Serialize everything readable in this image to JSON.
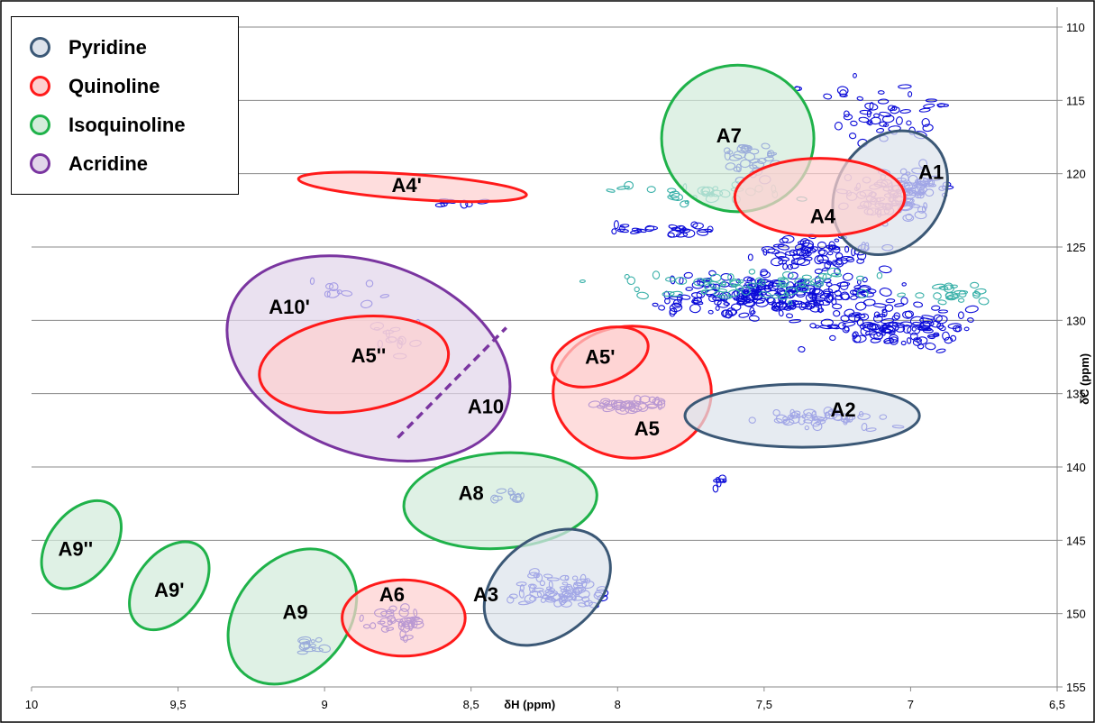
{
  "chart_data": {
    "type": "scatter",
    "title": "",
    "xlabel": "δH (ppm)",
    "ylabel": "δC (ppm)",
    "x_reversed": true,
    "y_reversed": true,
    "xlim": [
      10,
      6.5
    ],
    "ylim": [
      110,
      155
    ],
    "x_tick_labels": [
      "10",
      "9,5",
      "9",
      "8,5",
      "8",
      "7,5",
      "7",
      "6,5"
    ],
    "x_tick_values": [
      10,
      9.5,
      9,
      8.5,
      8,
      7.5,
      7,
      6.5
    ],
    "y_tick_labels": [
      "110",
      "115",
      "120",
      "125",
      "130",
      "135",
      "140",
      "145",
      "150",
      "155"
    ],
    "y_tick_values": [
      110,
      115,
      120,
      125,
      130,
      135,
      140,
      145,
      150,
      155
    ],
    "grid": "horizontal",
    "legend_placement": "top-left",
    "legend": [
      {
        "name": "Pyridine",
        "color": "#3b5876",
        "fill": "#dde3ec"
      },
      {
        "name": "Quinoline",
        "color": "#ff1a1a",
        "fill": "#fdd0d0"
      },
      {
        "name": "Isoquinoline",
        "color": "#1fb24a",
        "fill": "#d3ecdb"
      },
      {
        "name": "Acridine",
        "color": "#7a35a0",
        "fill": "#e2d6ea"
      }
    ],
    "regions": [
      {
        "label": "A10'",
        "family": "Acridine",
        "center_h": 8.85,
        "center_c": 132.6,
        "width_h": 1.0,
        "height_c": 13.0,
        "rotation_deg": 20,
        "label_h": 9.12,
        "label_c": 129.2
      },
      {
        "label": "A10",
        "family": "Acridine",
        "center_h": 8.85,
        "center_c": 132.6,
        "width_h": 1.0,
        "height_c": 13.0,
        "rotation_deg": 20,
        "label_h": 8.45,
        "label_c": 136.0
      },
      {
        "label": "A5''",
        "family": "Quinoline",
        "center_h": 8.9,
        "center_c": 133.0,
        "width_h": 0.65,
        "height_c": 6.4,
        "rotation_deg": -8,
        "label_h": 8.85,
        "label_c": 132.5
      },
      {
        "label": "A5",
        "family": "Quinoline",
        "center_h": 7.95,
        "center_c": 134.9,
        "width_h": 0.54,
        "height_c": 9.0,
        "rotation_deg": 0,
        "label_h": 7.9,
        "label_c": 137.5
      },
      {
        "label": "A5'",
        "family": "Quinoline",
        "center_h": 8.06,
        "center_c": 132.5,
        "width_h": 0.34,
        "height_c": 3.7,
        "rotation_deg": -18,
        "label_h": 8.06,
        "label_c": 132.6
      },
      {
        "label": "A4'",
        "family": "Quinoline",
        "center_h": 8.7,
        "center_c": 120.9,
        "width_h": 0.78,
        "height_c": 1.7,
        "rotation_deg": 4,
        "label_h": 8.72,
        "label_c": 120.9
      },
      {
        "label": "A4",
        "family": "Quinoline",
        "center_h": 7.31,
        "center_c": 121.6,
        "width_h": 0.58,
        "height_c": 5.3,
        "rotation_deg": 0,
        "label_h": 7.3,
        "label_c": 123.0
      },
      {
        "label": "A7",
        "family": "Isoquinoline",
        "center_h": 7.59,
        "center_c": 117.6,
        "width_h": 0.52,
        "height_c": 10.0,
        "rotation_deg": 0,
        "label_h": 7.62,
        "label_c": 117.5
      },
      {
        "label": "A1",
        "family": "Pyridine",
        "center_h": 7.07,
        "center_c": 121.3,
        "width_h": 0.36,
        "height_c": 9.0,
        "rotation_deg": 35,
        "label_h": 6.93,
        "label_c": 120.0
      },
      {
        "label": "A2",
        "family": "Pyridine",
        "center_h": 7.37,
        "center_c": 136.5,
        "width_h": 0.8,
        "height_c": 4.3,
        "rotation_deg": 0,
        "label_h": 7.23,
        "label_c": 136.2
      },
      {
        "label": "A8",
        "family": "Isoquinoline",
        "center_h": 8.4,
        "center_c": 142.3,
        "width_h": 0.66,
        "height_c": 6.5,
        "rotation_deg": -4,
        "label_h": 8.5,
        "label_c": 141.9
      },
      {
        "label": "A3",
        "family": "Pyridine",
        "center_h": 8.24,
        "center_c": 148.2,
        "width_h": 0.48,
        "height_c": 6.7,
        "rotation_deg": -38,
        "label_h": 8.45,
        "label_c": 148.8
      },
      {
        "label": "A6",
        "family": "Quinoline",
        "center_h": 8.73,
        "center_c": 150.3,
        "width_h": 0.42,
        "height_c": 5.2,
        "rotation_deg": 0,
        "label_h": 8.77,
        "label_c": 148.8
      },
      {
        "label": "A9",
        "family": "Isoquinoline",
        "center_h": 9.11,
        "center_c": 150.2,
        "width_h": 0.38,
        "height_c": 10.2,
        "rotation_deg": 40,
        "label_h": 9.1,
        "label_c": 150.0
      },
      {
        "label": "A9'",
        "family": "Isoquinoline",
        "center_h": 9.53,
        "center_c": 148.1,
        "width_h": 0.22,
        "height_c": 6.8,
        "rotation_deg": 38,
        "label_h": 9.53,
        "label_c": 148.5
      },
      {
        "label": "A9''",
        "family": "Isoquinoline",
        "center_h": 9.83,
        "center_c": 145.3,
        "width_h": 0.22,
        "height_c": 6.8,
        "rotation_deg": 38,
        "label_h": 9.85,
        "label_c": 145.7
      }
    ],
    "acridine_divider": {
      "from_h": 8.75,
      "from_c": 138.0,
      "to_h": 8.38,
      "to_c": 130.5,
      "style": "dashed"
    },
    "cross_peaks_color": "#0a0ad8",
    "cross_peaks_secondary_color": "#38b0a8",
    "cross_peak_clusters": [
      {
        "center_h": 7.45,
        "center_c": 128.3,
        "spread_h": 0.55,
        "spread_c": 2.2,
        "count": 220,
        "color_key": "primary"
      },
      {
        "center_h": 7.05,
        "center_c": 130.5,
        "spread_h": 0.35,
        "spread_c": 2.0,
        "count": 110,
        "color_key": "primary"
      },
      {
        "center_h": 7.05,
        "center_c": 121.5,
        "spread_h": 0.25,
        "spread_c": 2.4,
        "count": 110,
        "color_key": "primary"
      },
      {
        "center_h": 7.3,
        "center_c": 125.5,
        "spread_h": 0.3,
        "spread_c": 1.5,
        "count": 70,
        "color_key": "primary"
      },
      {
        "center_h": 7.1,
        "center_c": 116.0,
        "spread_h": 0.35,
        "spread_c": 3.0,
        "count": 50,
        "color_key": "primary"
      },
      {
        "center_h": 7.55,
        "center_c": 119.0,
        "spread_h": 0.15,
        "spread_c": 2.0,
        "count": 30,
        "color_key": "primary"
      },
      {
        "center_h": 7.3,
        "center_c": 136.7,
        "spread_h": 0.3,
        "spread_c": 1.0,
        "count": 45,
        "color_key": "primary"
      },
      {
        "center_h": 7.95,
        "center_c": 135.8,
        "spread_h": 0.18,
        "spread_c": 0.6,
        "count": 35,
        "color_key": "primary"
      },
      {
        "center_h": 8.2,
        "center_c": 148.5,
        "spread_h": 0.25,
        "spread_c": 1.8,
        "count": 75,
        "color_key": "primary"
      },
      {
        "center_h": 8.75,
        "center_c": 150.5,
        "spread_h": 0.15,
        "spread_c": 1.5,
        "count": 35,
        "color_key": "primary"
      },
      {
        "center_h": 9.05,
        "center_c": 152.3,
        "spread_h": 0.07,
        "spread_c": 0.9,
        "count": 12,
        "color_key": "primary"
      },
      {
        "center_h": 8.38,
        "center_c": 142.0,
        "spread_h": 0.13,
        "spread_c": 0.5,
        "count": 10,
        "color_key": "primary"
      },
      {
        "center_h": 7.65,
        "center_c": 141.0,
        "spread_h": 0.04,
        "spread_c": 0.6,
        "count": 6,
        "color_key": "primary"
      },
      {
        "center_h": 8.75,
        "center_c": 131.0,
        "spread_h": 0.18,
        "spread_c": 2.2,
        "count": 14,
        "color_key": "primary"
      },
      {
        "center_h": 8.9,
        "center_c": 128.0,
        "spread_h": 0.25,
        "spread_c": 1.5,
        "count": 10,
        "color_key": "primary"
      },
      {
        "center_h": 8.55,
        "center_c": 122.0,
        "spread_h": 0.18,
        "spread_c": 0.6,
        "count": 8,
        "color_key": "primary"
      },
      {
        "center_h": 7.85,
        "center_c": 123.8,
        "spread_h": 0.3,
        "spread_c": 0.6,
        "count": 25,
        "color_key": "primary"
      },
      {
        "center_h": 7.6,
        "center_c": 127.5,
        "spread_h": 0.7,
        "spread_c": 1.5,
        "count": 60,
        "color_key": "secondary"
      },
      {
        "center_h": 6.85,
        "center_c": 128.2,
        "spread_h": 0.18,
        "spread_c": 1.2,
        "count": 20,
        "color_key": "secondary"
      },
      {
        "center_h": 7.75,
        "center_c": 121.3,
        "spread_h": 0.45,
        "spread_c": 1.0,
        "count": 30,
        "color_key": "secondary"
      }
    ]
  }
}
